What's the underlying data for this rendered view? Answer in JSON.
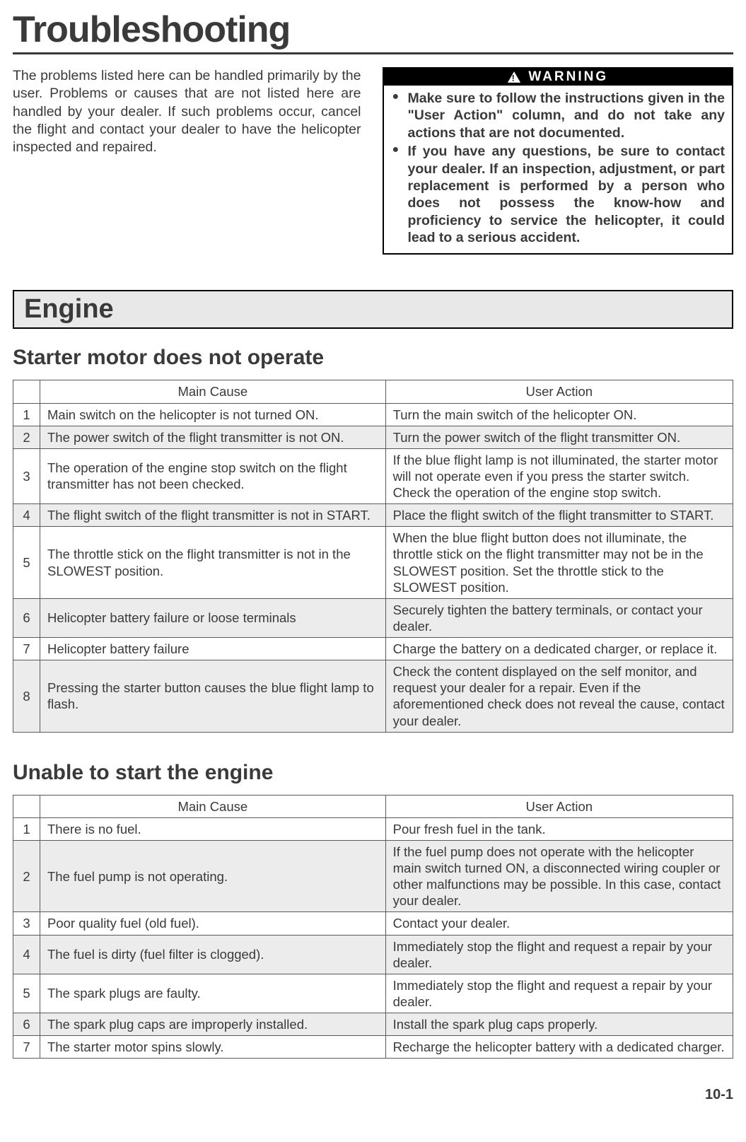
{
  "page": {
    "title": "Troubleshooting",
    "intro": "The problems listed here can be handled primarily by the user.\nProblems or causes that are not listed here are handled by your dealer. If such problems occur, cancel the flight and contact your dealer to have the helicopter inspected and repaired.",
    "page_number": "10-1"
  },
  "warning": {
    "header": "WARNING",
    "items": [
      "Make sure to follow the instructions given in the \"User Action\" column, and do not take any actions that are not documented.",
      "If you have any questions, be sure to contact your dealer. If an inspection, adjustment, or part replacement is performed by a person who does not possess the know-how and proficiency to service the helicopter, it could lead to a serious accident."
    ]
  },
  "section": {
    "header": "Engine"
  },
  "table_headers": {
    "cause": "Main Cause",
    "action": "User Action"
  },
  "table1": {
    "title": "Starter motor does not operate",
    "rows": [
      {
        "n": "1",
        "cause": "Main switch on the helicopter is not turned ON.",
        "action": "Turn the main switch of the helicopter ON."
      },
      {
        "n": "2",
        "cause": "The power switch of the flight transmitter is not ON.",
        "action": "Turn the power switch of the flight transmitter ON."
      },
      {
        "n": "3",
        "cause": "The operation of the engine stop switch on the flight transmitter has not been checked.",
        "action": "If the blue flight lamp is not illuminated, the starter motor will not operate even if you press the starter switch. Check the operation of the engine stop switch."
      },
      {
        "n": "4",
        "cause": "The flight switch of the flight transmitter is not in START.",
        "action": "Place the flight switch of the flight transmitter to START."
      },
      {
        "n": "5",
        "cause": "The throttle stick on the flight transmitter is not in the SLOWEST position.",
        "action": "When the blue flight button does not illuminate, the throttle stick on the flight transmitter may not be in the SLOWEST position. Set the throttle stick to the SLOWEST position."
      },
      {
        "n": "6",
        "cause": "Helicopter battery failure or loose terminals",
        "action": "Securely tighten the battery terminals, or contact your dealer."
      },
      {
        "n": "7",
        "cause": "Helicopter battery failure",
        "action": "Charge the battery on a dedicated charger, or replace it."
      },
      {
        "n": "8",
        "cause": "Pressing the starter button causes the blue flight lamp to flash.",
        "action": "Check the content displayed on the self monitor, and request your dealer for a repair. Even if the aforementioned check does not reveal the cause, contact your dealer."
      }
    ]
  },
  "table2": {
    "title": "Unable to start the engine",
    "rows": [
      {
        "n": "1",
        "cause": "There is no fuel.",
        "action": "Pour fresh fuel in the tank."
      },
      {
        "n": "2",
        "cause": "The fuel pump is not operating.",
        "action": "If the fuel pump does not operate with the helicopter main switch turned ON, a disconnected wiring coupler or other malfunctions may be possible. In this case, contact your dealer."
      },
      {
        "n": "3",
        "cause": "Poor quality fuel (old fuel).",
        "action": "Contact your dealer."
      },
      {
        "n": "4",
        "cause": "The fuel is dirty (fuel filter is clogged).",
        "action": "Immediately stop the flight and request a repair by your dealer."
      },
      {
        "n": "5",
        "cause": "The spark plugs are faulty.",
        "action": "Immediately stop the flight and request a repair by your dealer."
      },
      {
        "n": "6",
        "cause": "The spark plug caps are improperly installed.",
        "action": "Install the spark plug caps properly."
      },
      {
        "n": "7",
        "cause": "The starter motor spins slowly.",
        "action": "Recharge the helicopter battery with a dedicated charger."
      }
    ]
  },
  "styling": {
    "background_color": "#ffffff",
    "text_color": "#3a3a3a",
    "border_color": "#000000",
    "table_border_color": "#5a5a5a",
    "shade_row_color": "#ececec",
    "section_bg_color": "#e8e8e8",
    "title_fontsize": 52,
    "section_fontsize": 38,
    "subsection_fontsize": 30,
    "body_fontsize": 19.5,
    "table_fontsize": 18.5
  }
}
